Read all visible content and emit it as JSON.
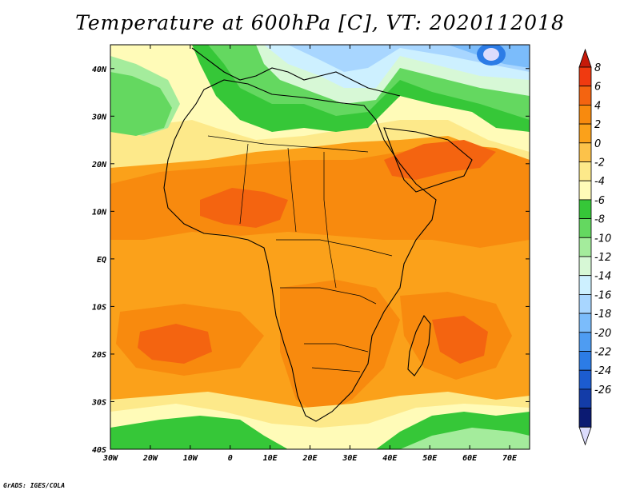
{
  "title": "Temperature at 600hPa [C], VT: 2020112018",
  "credit": "GrADS: IGES/COLA",
  "map": {
    "region": "Africa",
    "variable": "Temperature at 600hPa",
    "units": "C",
    "lon_range": [
      -30,
      75
    ],
    "lat_range": [
      -40,
      45
    ],
    "lon_ticks": [
      "30W",
      "20W",
      "10W",
      "0",
      "10E",
      "20E",
      "30E",
      "40E",
      "50E",
      "60E",
      "70E"
    ],
    "lat_ticks": [
      "40N",
      "30N",
      "20N",
      "10N",
      "EQ",
      "10S",
      "20S",
      "30S",
      "40S"
    ]
  },
  "colorbar": {
    "labels": [
      "8",
      "6",
      "4",
      "2",
      "0",
      "-2",
      "-4",
      "-6",
      "-8",
      "-10",
      "-12",
      "-14",
      "-16",
      "-18",
      "-20",
      "-22",
      "-24",
      "-26"
    ],
    "colors": [
      "#c61a0a",
      "#f03a10",
      "#f46410",
      "#f88a0e",
      "#fba11a",
      "#fcc24a",
      "#fde98a",
      "#fffbb8",
      "#36c738",
      "#64d860",
      "#a4ec9c",
      "#d7f8d6",
      "#cdf0ff",
      "#a8d6ff",
      "#7bbcfb",
      "#4e9cf2",
      "#2c7ce6",
      "#1c5cd0",
      "#133ca8",
      "#0b1a72",
      "#dcdcfc"
    ]
  },
  "fields": {
    "bg": "#fba11a",
    "level_colors": {
      "warm4": "#f46410",
      "warm2": "#f88a0e",
      "warm0": "#fba11a",
      "m2": "#fcc24a",
      "m4": "#fde98a",
      "m6": "#fffbb8",
      "m8": "#36c738",
      "m10": "#64d860",
      "m12": "#a4ec9c",
      "m14": "#d7f8d6",
      "m16": "#cdf0ff",
      "m18": "#a8d6ff",
      "m20": "#7bbcfb",
      "m22": "#4e9cf2",
      "m24": "#2c7ce6",
      "m26": "#dcdcfc"
    }
  }
}
